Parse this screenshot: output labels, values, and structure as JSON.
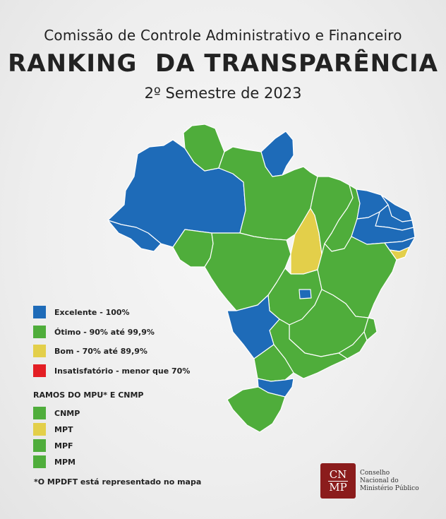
{
  "header": {
    "subtitle": "Comissão de Controle Administrativo e Financeiro",
    "title": "RANKING  DA TRANSPARÊNCIA",
    "period": "2º Semestre de 2023"
  },
  "colors": {
    "excelente": "#1e6bb8",
    "otimo": "#4fad3b",
    "bom": "#e3cf4a",
    "insatisfatorio": "#e31e24",
    "border": "#ffffff"
  },
  "legend": {
    "categories": [
      {
        "label": "Excelente - 100%",
        "color_key": "excelente"
      },
      {
        "label": "Ótimo - 90% até 99,9%",
        "color_key": "otimo"
      },
      {
        "label": "Bom - 70% até 89,9%",
        "color_key": "bom"
      },
      {
        "label": "Insatisfatório - menor que 70%",
        "color_key": "insatisfatorio"
      }
    ],
    "branches_heading": "RAMOS DO MPU* E CNMP",
    "branches": [
      {
        "label": "CNMP",
        "color_key": "otimo"
      },
      {
        "label": "MPT",
        "color_key": "bom"
      },
      {
        "label": "MPF",
        "color_key": "otimo"
      },
      {
        "label": "MPM",
        "color_key": "otimo"
      }
    ]
  },
  "footnote": "*O MPDFT está representado no mapa",
  "logo": {
    "mark_top": "CN",
    "mark_bottom": "MP",
    "lines": [
      "Conselho",
      "Nacional do",
      "Ministério Público"
    ]
  },
  "states": [
    {
      "id": "AM",
      "rating": "excelente"
    },
    {
      "id": "AC",
      "rating": "excelente"
    },
    {
      "id": "RR",
      "rating": "otimo"
    },
    {
      "id": "AP",
      "rating": "excelente"
    },
    {
      "id": "PA",
      "rating": "otimo"
    },
    {
      "id": "RO",
      "rating": "otimo"
    },
    {
      "id": "MT",
      "rating": "otimo"
    },
    {
      "id": "TO",
      "rating": "bom"
    },
    {
      "id": "MA",
      "rating": "otimo"
    },
    {
      "id": "PI",
      "rating": "otimo"
    },
    {
      "id": "CE",
      "rating": "excelente"
    },
    {
      "id": "RN",
      "rating": "excelente"
    },
    {
      "id": "PB",
      "rating": "excelente"
    },
    {
      "id": "PE",
      "rating": "excelente"
    },
    {
      "id": "AL",
      "rating": "excelente"
    },
    {
      "id": "SE",
      "rating": "bom"
    },
    {
      "id": "BA",
      "rating": "otimo"
    },
    {
      "id": "GO",
      "rating": "otimo"
    },
    {
      "id": "DF",
      "rating": "excelente"
    },
    {
      "id": "MG",
      "rating": "otimo"
    },
    {
      "id": "ES",
      "rating": "otimo"
    },
    {
      "id": "RJ",
      "rating": "otimo"
    },
    {
      "id": "SP",
      "rating": "otimo"
    },
    {
      "id": "MS",
      "rating": "excelente"
    },
    {
      "id": "PR",
      "rating": "otimo"
    },
    {
      "id": "SC",
      "rating": "excelente"
    },
    {
      "id": "RS",
      "rating": "otimo"
    }
  ]
}
